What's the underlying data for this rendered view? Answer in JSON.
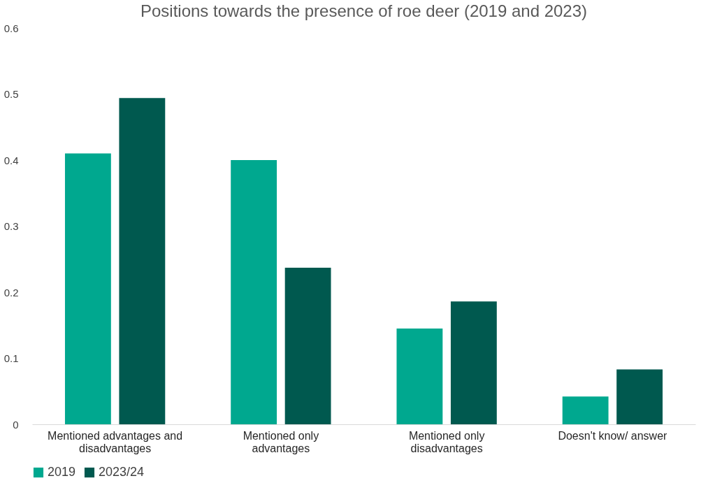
{
  "chart_data": {
    "type": "bar",
    "title": "Positions towards the presence of roe deer (2019 and 2023)",
    "categories": [
      "Mentioned advantages and disadvantages",
      "Mentioned only advantages",
      "Mentioned only disadvantages",
      "Doesn't know/ answer"
    ],
    "series": [
      {
        "name": "2019",
        "color": "#00a88f",
        "values": [
          0.41,
          0.4,
          0.145,
          0.042
        ]
      },
      {
        "name": "2023/24",
        "color": "#00594f",
        "values": [
          0.494,
          0.237,
          0.186,
          0.083
        ]
      }
    ],
    "ylim": [
      0,
      0.6
    ],
    "yticks": [
      0,
      0.1,
      0.2,
      0.3,
      0.4,
      0.5,
      0.6
    ],
    "grid": false,
    "legend": "bottom"
  }
}
